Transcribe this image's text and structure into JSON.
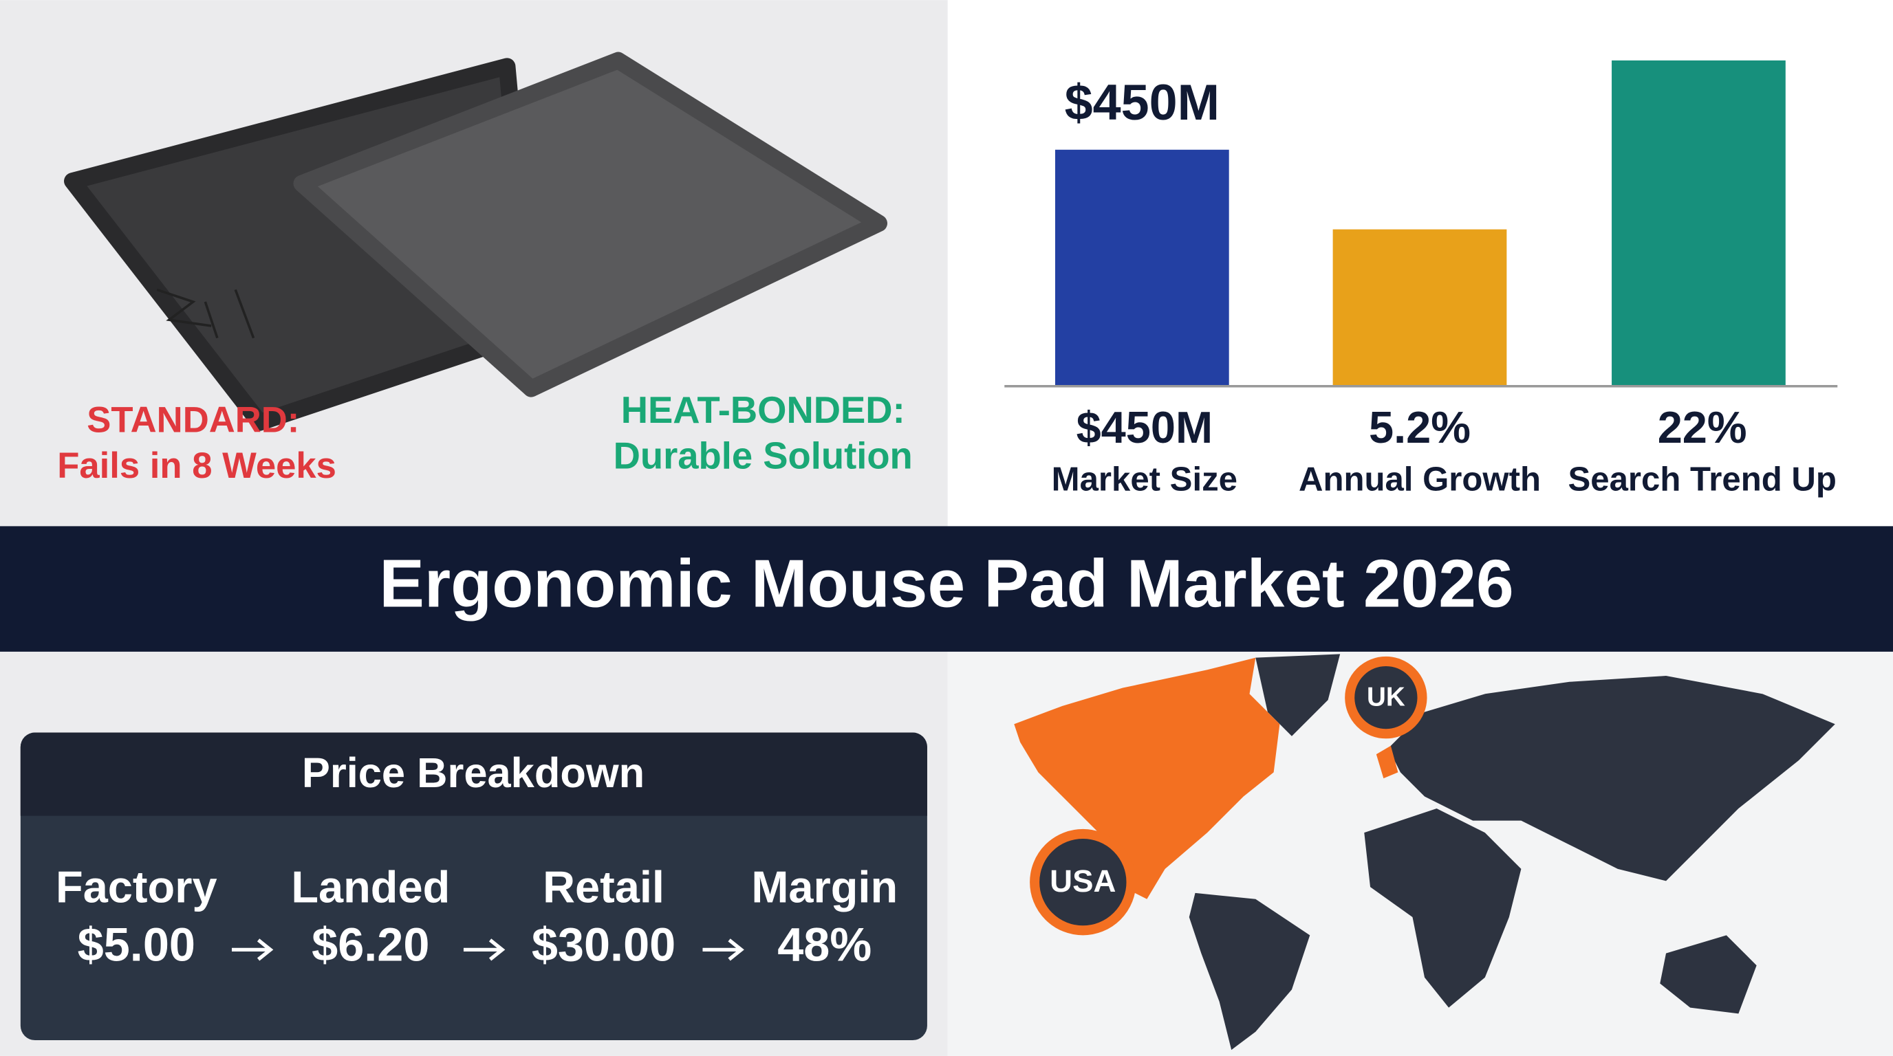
{
  "comparison": {
    "standard": {
      "title": "STANDARD:",
      "subtitle": "Fails in 8 Weeks"
    },
    "heat_bonded": {
      "title": "HEAT-BONDED:",
      "subtitle": "Durable Solution"
    }
  },
  "stats": {
    "highlight": "$450M",
    "items": [
      {
        "value": "$450M",
        "label": "Market Size"
      },
      {
        "value": "5.2%",
        "label": "Annual Growth"
      },
      {
        "value": "22%",
        "label": "Search Trend Up"
      }
    ]
  },
  "banner": {
    "title": "Ergonomic Mouse Pad Market 2026"
  },
  "price": {
    "title": "Price Breakdown",
    "steps": [
      {
        "label": "Factory",
        "value": "$5.00"
      },
      {
        "label": "Landed",
        "value": "$6.20"
      },
      {
        "label": "Retail",
        "value": "$30.00"
      },
      {
        "label": "Margin",
        "value": "48%"
      }
    ]
  },
  "map": {
    "markers": [
      "UK",
      "USA"
    ]
  }
}
